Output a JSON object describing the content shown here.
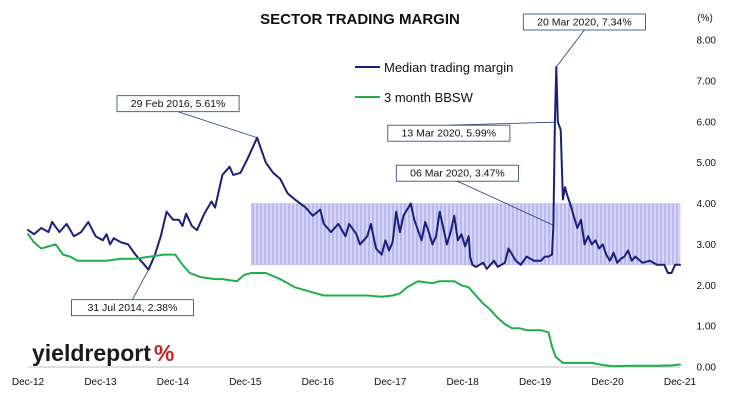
{
  "logo": {
    "main": "yieldreport",
    "mark": "%"
  },
  "colors": {
    "median": "#1a1f7a",
    "bbsw": "#1fae4c",
    "band_fill": "#d6d6f8",
    "band_hatch": "#9c9ce6",
    "annotation_line": "#1f3f77",
    "logo_percent": "#c1272d"
  },
  "chart_data": {
    "type": "line",
    "title": "SECTOR TRADING MARGIN",
    "unit_label": "(%)",
    "xlim": [
      2012.917,
      2021.917
    ],
    "ylim": [
      0,
      8
    ],
    "y_ticks": [
      0,
      1,
      2,
      3,
      4,
      5,
      6,
      7,
      8
    ],
    "y_tick_labels": [
      "0.00",
      "1.00",
      "2.00",
      "3.00",
      "4.00",
      "5.00",
      "6.00",
      "7.00",
      "8.00"
    ],
    "x_ticks": [
      2012.917,
      2013.917,
      2014.917,
      2015.917,
      2016.917,
      2017.917,
      2018.917,
      2019.917,
      2020.917,
      2021.917
    ],
    "x_tick_labels": [
      "Dec-12",
      "Dec-13",
      "Dec-14",
      "Dec-15",
      "Dec-16",
      "Dec-17",
      "Dec-18",
      "Dec-19",
      "Dec-20",
      "Dec-21"
    ],
    "shaded_band": {
      "x": [
        2016.0,
        2021.917
      ],
      "y": [
        2.5,
        4.0
      ]
    },
    "legend": {
      "position": "top-right"
    },
    "series": [
      {
        "name": "Median trading margin",
        "color": "#1a1f7a",
        "points": [
          [
            2012.917,
            3.35
          ],
          [
            2013.0,
            3.25
          ],
          [
            2013.1,
            3.4
          ],
          [
            2013.2,
            3.3
          ],
          [
            2013.25,
            3.55
          ],
          [
            2013.35,
            3.3
          ],
          [
            2013.45,
            3.5
          ],
          [
            2013.55,
            3.2
          ],
          [
            2013.65,
            3.3
          ],
          [
            2013.75,
            3.55
          ],
          [
            2013.85,
            3.2
          ],
          [
            2013.95,
            3.1
          ],
          [
            2014.0,
            3.25
          ],
          [
            2014.05,
            3.0
          ],
          [
            2014.1,
            3.15
          ],
          [
            2014.2,
            3.05
          ],
          [
            2014.3,
            3.0
          ],
          [
            2014.4,
            2.75
          ],
          [
            2014.5,
            2.55
          ],
          [
            2014.58,
            2.38
          ],
          [
            2014.67,
            2.75
          ],
          [
            2014.75,
            3.2
          ],
          [
            2014.83,
            3.8
          ],
          [
            2014.92,
            3.6
          ],
          [
            2015.0,
            3.6
          ],
          [
            2015.05,
            3.45
          ],
          [
            2015.1,
            3.75
          ],
          [
            2015.18,
            3.45
          ],
          [
            2015.25,
            3.35
          ],
          [
            2015.35,
            3.75
          ],
          [
            2015.45,
            4.05
          ],
          [
            2015.5,
            3.9
          ],
          [
            2015.6,
            4.7
          ],
          [
            2015.7,
            4.9
          ],
          [
            2015.75,
            4.7
          ],
          [
            2015.85,
            4.75
          ],
          [
            2015.95,
            5.1
          ],
          [
            2016.08,
            5.61
          ],
          [
            2016.2,
            5.0
          ],
          [
            2016.3,
            4.75
          ],
          [
            2016.4,
            4.6
          ],
          [
            2016.5,
            4.25
          ],
          [
            2016.6,
            4.1
          ],
          [
            2016.75,
            3.9
          ],
          [
            2016.85,
            3.7
          ],
          [
            2016.95,
            3.85
          ],
          [
            2017.0,
            3.5
          ],
          [
            2017.1,
            3.3
          ],
          [
            2017.2,
            3.5
          ],
          [
            2017.3,
            3.2
          ],
          [
            2017.35,
            3.5
          ],
          [
            2017.45,
            3.25
          ],
          [
            2017.5,
            3.0
          ],
          [
            2017.6,
            3.2
          ],
          [
            2017.65,
            3.5
          ],
          [
            2017.72,
            2.9
          ],
          [
            2017.8,
            2.75
          ],
          [
            2017.85,
            3.1
          ],
          [
            2017.9,
            2.85
          ],
          [
            2017.95,
            3.05
          ],
          [
            2018.0,
            3.8
          ],
          [
            2018.05,
            3.3
          ],
          [
            2018.1,
            3.7
          ],
          [
            2018.2,
            4.0
          ],
          [
            2018.25,
            3.6
          ],
          [
            2018.35,
            3.1
          ],
          [
            2018.4,
            3.55
          ],
          [
            2018.45,
            3.3
          ],
          [
            2018.5,
            3.0
          ],
          [
            2018.55,
            3.2
          ],
          [
            2018.6,
            3.8
          ],
          [
            2018.65,
            3.4
          ],
          [
            2018.7,
            3.0
          ],
          [
            2018.75,
            3.3
          ],
          [
            2018.8,
            3.7
          ],
          [
            2018.85,
            3.1
          ],
          [
            2018.9,
            3.25
          ],
          [
            2018.95,
            2.95
          ],
          [
            2019.0,
            3.2
          ],
          [
            2019.02,
            2.7
          ],
          [
            2019.05,
            2.5
          ],
          [
            2019.1,
            2.45
          ],
          [
            2019.2,
            2.55
          ],
          [
            2019.25,
            2.4
          ],
          [
            2019.35,
            2.6
          ],
          [
            2019.4,
            2.45
          ],
          [
            2019.5,
            2.55
          ],
          [
            2019.55,
            2.9
          ],
          [
            2019.65,
            2.6
          ],
          [
            2019.72,
            2.5
          ],
          [
            2019.8,
            2.7
          ],
          [
            2019.9,
            2.6
          ],
          [
            2020.0,
            2.6
          ],
          [
            2020.05,
            2.7
          ],
          [
            2020.1,
            2.7
          ],
          [
            2020.15,
            2.75
          ],
          [
            2020.17,
            3.47
          ],
          [
            2020.19,
            5.99
          ],
          [
            2020.21,
            7.34
          ],
          [
            2020.23,
            6.0
          ],
          [
            2020.27,
            5.8
          ],
          [
            2020.3,
            4.1
          ],
          [
            2020.33,
            4.4
          ],
          [
            2020.36,
            4.2
          ],
          [
            2020.4,
            4.0
          ],
          [
            2020.45,
            3.7
          ],
          [
            2020.5,
            3.4
          ],
          [
            2020.55,
            3.6
          ],
          [
            2020.6,
            3.0
          ],
          [
            2020.65,
            3.2
          ],
          [
            2020.7,
            3.0
          ],
          [
            2020.75,
            3.1
          ],
          [
            2020.8,
            2.9
          ],
          [
            2020.85,
            3.0
          ],
          [
            2020.9,
            2.75
          ],
          [
            2020.95,
            2.6
          ],
          [
            2021.0,
            2.8
          ],
          [
            2021.05,
            2.55
          ],
          [
            2021.1,
            2.65
          ],
          [
            2021.15,
            2.7
          ],
          [
            2021.2,
            2.85
          ],
          [
            2021.25,
            2.6
          ],
          [
            2021.3,
            2.7
          ],
          [
            2021.4,
            2.55
          ],
          [
            2021.5,
            2.6
          ],
          [
            2021.6,
            2.5
          ],
          [
            2021.7,
            2.5
          ],
          [
            2021.75,
            2.3
          ],
          [
            2021.8,
            2.3
          ],
          [
            2021.85,
            2.5
          ],
          [
            2021.917,
            2.5
          ]
        ]
      },
      {
        "name": "3 month BBSW",
        "color": "#1fae4c",
        "points": [
          [
            2012.917,
            3.25
          ],
          [
            2013.0,
            3.05
          ],
          [
            2013.1,
            2.9
          ],
          [
            2013.2,
            2.95
          ],
          [
            2013.3,
            3.0
          ],
          [
            2013.4,
            2.75
          ],
          [
            2013.5,
            2.7
          ],
          [
            2013.6,
            2.6
          ],
          [
            2013.8,
            2.6
          ],
          [
            2014.0,
            2.6
          ],
          [
            2014.2,
            2.65
          ],
          [
            2014.4,
            2.65
          ],
          [
            2014.6,
            2.7
          ],
          [
            2014.8,
            2.75
          ],
          [
            2014.95,
            2.75
          ],
          [
            2015.05,
            2.5
          ],
          [
            2015.15,
            2.3
          ],
          [
            2015.3,
            2.2
          ],
          [
            2015.5,
            2.15
          ],
          [
            2015.6,
            2.15
          ],
          [
            2015.8,
            2.1
          ],
          [
            2015.9,
            2.25
          ],
          [
            2016.0,
            2.3
          ],
          [
            2016.2,
            2.3
          ],
          [
            2016.4,
            2.15
          ],
          [
            2016.6,
            1.95
          ],
          [
            2016.8,
            1.85
          ],
          [
            2017.0,
            1.75
          ],
          [
            2017.2,
            1.75
          ],
          [
            2017.4,
            1.75
          ],
          [
            2017.6,
            1.75
          ],
          [
            2017.8,
            1.72
          ],
          [
            2017.95,
            1.75
          ],
          [
            2018.05,
            1.8
          ],
          [
            2018.15,
            1.95
          ],
          [
            2018.25,
            2.05
          ],
          [
            2018.3,
            2.1
          ],
          [
            2018.5,
            2.05
          ],
          [
            2018.6,
            2.1
          ],
          [
            2018.8,
            2.1
          ],
          [
            2018.9,
            2.0
          ],
          [
            2019.0,
            1.95
          ],
          [
            2019.1,
            1.75
          ],
          [
            2019.2,
            1.55
          ],
          [
            2019.3,
            1.4
          ],
          [
            2019.4,
            1.2
          ],
          [
            2019.5,
            1.05
          ],
          [
            2019.6,
            0.95
          ],
          [
            2019.7,
            0.95
          ],
          [
            2019.8,
            0.9
          ],
          [
            2019.9,
            0.9
          ],
          [
            2020.0,
            0.9
          ],
          [
            2020.1,
            0.85
          ],
          [
            2020.15,
            0.5
          ],
          [
            2020.2,
            0.25
          ],
          [
            2020.3,
            0.1
          ],
          [
            2020.5,
            0.1
          ],
          [
            2020.7,
            0.1
          ],
          [
            2020.85,
            0.05
          ],
          [
            2021.0,
            0.02
          ],
          [
            2021.2,
            0.03
          ],
          [
            2021.4,
            0.03
          ],
          [
            2021.6,
            0.03
          ],
          [
            2021.8,
            0.04
          ],
          [
            2021.917,
            0.06
          ]
        ]
      }
    ],
    "annotations": [
      {
        "label": "29 Feb 2016,  5.61%",
        "x": 2016.08,
        "y": 5.61,
        "box": "above-left"
      },
      {
        "label": "31 Jul 2014,  2.38%",
        "x": 2014.58,
        "y": 2.38,
        "box": "below-left"
      },
      {
        "label": "20 Mar 2020,  7.34%",
        "x": 2020.21,
        "y": 7.34,
        "box": "above-right"
      },
      {
        "label": "13 Mar 2020,  5.99%",
        "x": 2020.19,
        "y": 5.99,
        "box": "left"
      },
      {
        "label": "06 Mar 2020,  3.47%",
        "x": 2020.17,
        "y": 3.47,
        "box": "left-above"
      }
    ]
  }
}
